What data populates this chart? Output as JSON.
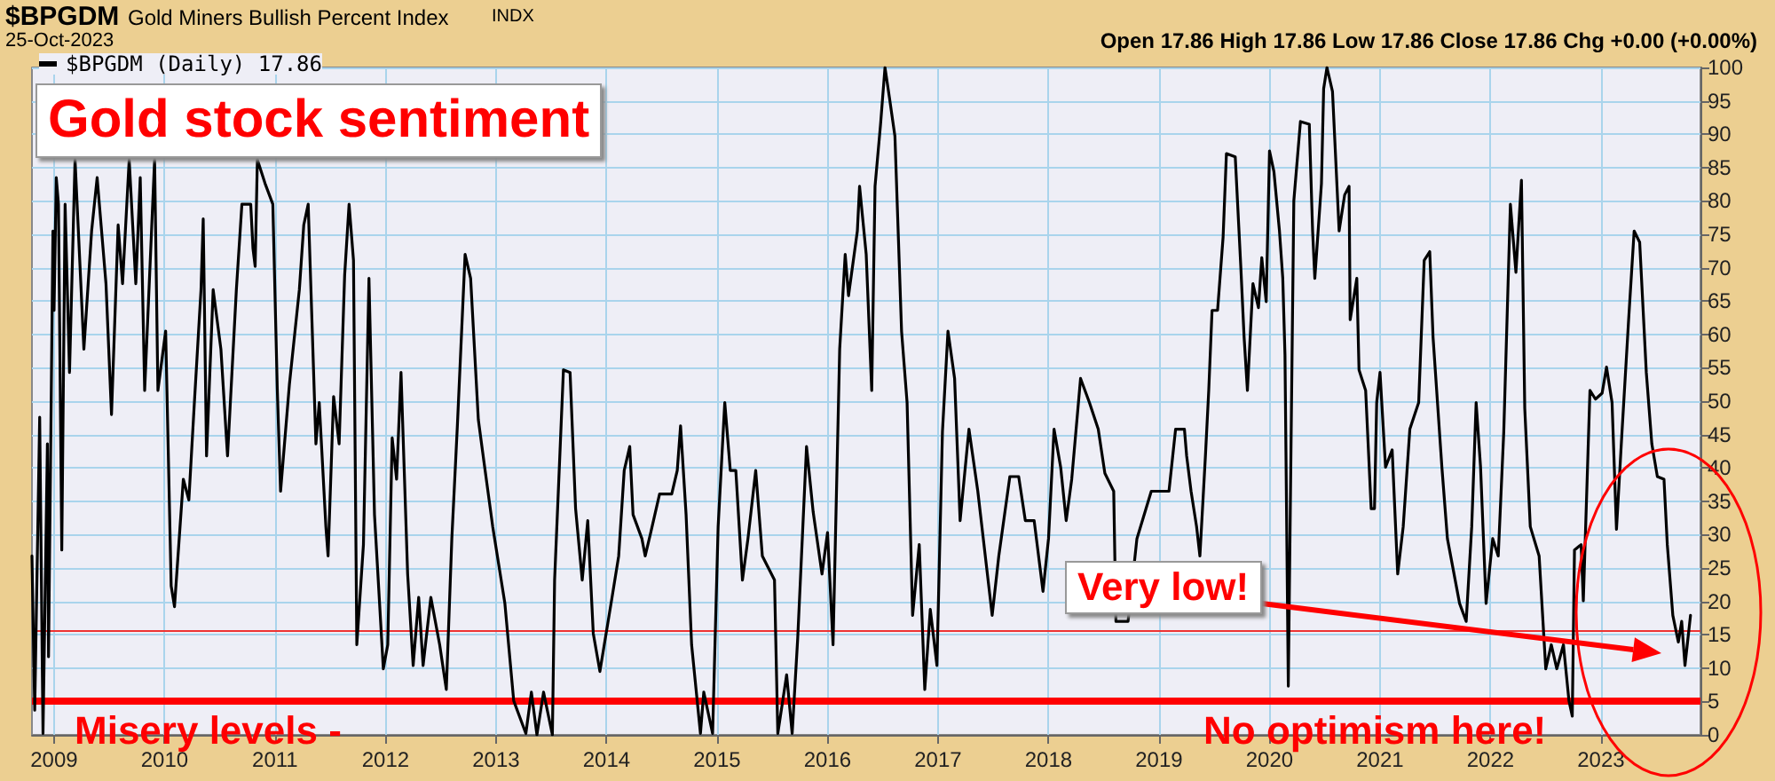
{
  "chart_data": {
    "type": "line",
    "title": "Gold stock sentiment",
    "annotations": [
      "$BPGDM",
      "Gold Miners Bullish Percent Index",
      "INDX",
      "25-Oct-2023",
      "Open 17.86 High 17.86 Low 17.86 Close 17.86 Chg +0.00 (+0.00%)",
      "Very low!",
      "Misery levels -",
      "No optimism here!"
    ],
    "xlim": [
      2008.8,
      2023.9
    ],
    "xticks": [
      2009,
      2010,
      2011,
      2012,
      2013,
      2014,
      2015,
      2016,
      2017,
      2018,
      2019,
      2020,
      2021,
      2022,
      2023
    ],
    "ylim": [
      0,
      100
    ],
    "yticks": [
      0,
      5,
      10,
      15,
      20,
      25,
      30,
      35,
      40,
      45,
      50,
      55,
      60,
      65,
      70,
      75,
      80,
      85,
      90,
      95,
      100
    ],
    "grid": true,
    "legend": "top left",
    "marker": "none",
    "ref_lines": [
      {
        "axis": "y",
        "value": 15.5,
        "color": "#ee3333"
      },
      {
        "axis": "y",
        "value": 5,
        "color": "#ff0000"
      }
    ],
    "series": [
      {
        "name": "$BPGDM (Daily) 17.86",
        "color": "#000000",
        "x": [
          2008.8,
          2008.825,
          2008.87,
          2008.9,
          2008.94,
          2008.95,
          2008.99,
          2009.0,
          2009.02,
          2009.04,
          2009.07,
          2009.1,
          2009.14,
          2009.19,
          2009.27,
          2009.34,
          2009.39,
          2009.47,
          2009.52,
          2009.58,
          2009.62,
          2009.68,
          2009.74,
          2009.78,
          2009.82,
          2009.91,
          2009.94,
          2010.01,
          2010.06,
          2010.09,
          2010.17,
          2010.22,
          2010.27,
          2010.33,
          2010.35,
          2010.38,
          2010.44,
          2010.51,
          2010.57,
          2010.65,
          2010.7,
          2010.78,
          2010.8,
          2010.82,
          2010.84,
          2010.91,
          2010.98,
          2011.02,
          2011.05,
          2011.13,
          2011.22,
          2011.26,
          2011.3,
          2011.37,
          2011.4,
          2011.46,
          2011.48,
          2011.53,
          2011.58,
          2011.63,
          2011.67,
          2011.71,
          2011.74,
          2011.8,
          2011.85,
          2011.9,
          2011.98,
          2012.02,
          2012.06,
          2012.1,
          2012.14,
          2012.2,
          2012.25,
          2012.3,
          2012.34,
          2012.41,
          2012.49,
          2012.55,
          2012.6,
          2012.65,
          2012.72,
          2012.77,
          2012.84,
          2012.89,
          2012.97,
          2013.08,
          2013.16,
          2013.27,
          2013.32,
          2013.37,
          2013.43,
          2013.51,
          2013.53,
          2013.61,
          2013.67,
          2013.72,
          2013.78,
          2013.83,
          2013.88,
          2013.94,
          2014.05,
          2014.11,
          2014.16,
          2014.21,
          2014.24,
          2014.32,
          2014.35,
          2014.4,
          2014.48,
          2014.59,
          2014.64,
          2014.67,
          2014.72,
          2014.77,
          2014.85,
          2014.88,
          2014.96,
          2015.01,
          2015.07,
          2015.12,
          2015.17,
          2015.23,
          2015.28,
          2015.35,
          2015.41,
          2015.52,
          2015.55,
          2015.63,
          2015.68,
          2015.73,
          2015.81,
          2015.87,
          2015.95,
          2016.0,
          2016.05,
          2016.11,
          2016.16,
          2016.19,
          2016.27,
          2016.29,
          2016.35,
          2016.4,
          2016.43,
          2016.48,
          2016.52,
          2016.56,
          2016.61,
          2016.67,
          2016.72,
          2016.77,
          2016.83,
          2016.88,
          2016.93,
          2016.99,
          2017.04,
          2017.09,
          2017.15,
          2017.2,
          2017.28,
          2017.36,
          2017.49,
          2017.55,
          2017.65,
          2017.73,
          2017.79,
          2017.87,
          2017.95,
          2018.0,
          2018.05,
          2018.11,
          2018.16,
          2018.21,
          2018.29,
          2018.37,
          2018.45,
          2018.51,
          2018.59,
          2018.61,
          2018.72,
          2018.8,
          2018.93,
          2019.09,
          2019.15,
          2019.23,
          2019.25,
          2019.29,
          2019.34,
          2019.37,
          2019.42,
          2019.45,
          2019.48,
          2019.53,
          2019.58,
          2019.61,
          2019.69,
          2019.74,
          2019.77,
          2019.8,
          2019.85,
          2019.9,
          2019.93,
          2019.97,
          2020.0,
          2020.04,
          2020.09,
          2020.12,
          2020.14,
          2020.17,
          2020.22,
          2020.28,
          2020.36,
          2020.39,
          2020.41,
          2020.47,
          2020.49,
          2020.52,
          2020.57,
          2020.63,
          2020.68,
          2020.72,
          2020.73,
          2020.79,
          2020.81,
          2020.87,
          2020.92,
          2020.95,
          2020.97,
          2021.0,
          2021.05,
          2021.11,
          2021.16,
          2021.21,
          2021.27,
          2021.35,
          2021.4,
          2021.45,
          2021.48,
          2021.56,
          2021.61,
          2021.72,
          2021.78,
          2021.83,
          2021.87,
          2021.91,
          2021.96,
          2022.02,
          2022.07,
          2022.12,
          2022.18,
          2022.23,
          2022.28,
          2022.31,
          2022.36,
          2022.44,
          2022.5,
          2022.55,
          2022.6,
          2022.66,
          2022.71,
          2022.74,
          2022.76,
          2022.82,
          2022.84,
          2022.9,
          2022.95,
          2023.01,
          2023.05,
          2023.1,
          2023.14,
          2023.19,
          2023.25,
          2023.3,
          2023.35,
          2023.41,
          2023.46,
          2023.51,
          2023.57,
          2023.6,
          2023.65,
          2023.7,
          2023.73,
          2023.76,
          2023.81
        ],
        "values": [
          26.8,
          3.7,
          47.6,
          0.2,
          43.6,
          11.7,
          75.5,
          63.6,
          83.5,
          79.5,
          27.7,
          79.5,
          54.3,
          86.2,
          57.8,
          75.5,
          83.5,
          67.6,
          48.0,
          76.4,
          67.6,
          86.2,
          67.6,
          83.5,
          51.6,
          86.2,
          51.6,
          60.5,
          22.3,
          19.2,
          38.3,
          35.2,
          49.8,
          66.7,
          77.3,
          41.8,
          66.7,
          57.8,
          41.8,
          66.7,
          79.5,
          79.5,
          72.9,
          70.2,
          86.2,
          82.6,
          79.5,
          52.0,
          36.5,
          52.5,
          66.7,
          76.4,
          79.5,
          43.6,
          49.8,
          31.2,
          26.8,
          50.7,
          43.6,
          68.9,
          79.5,
          71.1,
          13.5,
          28.5,
          68.4,
          33.0,
          9.9,
          13.5,
          44.5,
          38.3,
          54.3,
          24.1,
          10.4,
          20.6,
          10.4,
          20.6,
          13.5,
          6.8,
          29.4,
          46.3,
          72.0,
          68.4,
          47.2,
          41.0,
          31.2,
          19.7,
          5.1,
          0.2,
          6.4,
          0,
          6.4,
          0,
          23.2,
          54.7,
          54.3,
          33.9,
          23.2,
          32.1,
          15.2,
          9.5,
          20.6,
          26.8,
          39.6,
          43.2,
          33.0,
          29.4,
          26.8,
          30.3,
          36.1,
          36.1,
          39.6,
          46.3,
          33.0,
          13.5,
          0.2,
          6.4,
          0.2,
          31.2,
          49.8,
          39.6,
          39.6,
          23.2,
          29.4,
          39.6,
          26.8,
          23.2,
          0.2,
          9.0,
          0.2,
          14.4,
          43.2,
          33.4,
          24.1,
          30.3,
          13.5,
          57.8,
          72.0,
          65.8,
          75.5,
          82.2,
          72.0,
          51.6,
          82.2,
          91.5,
          100,
          95.5,
          89.7,
          60.5,
          49.8,
          17.9,
          28.5,
          6.8,
          18.8,
          10.4,
          45.4,
          60.5,
          53.4,
          32.1,
          45.8,
          36.5,
          17.9,
          26.8,
          38.7,
          38.7,
          32.1,
          32.1,
          21.5,
          29.4,
          45.8,
          40.1,
          32.1,
          38.3,
          53.4,
          49.8,
          45.8,
          39.2,
          36.5,
          17.0,
          17.0,
          29.4,
          36.5,
          36.5,
          45.8,
          45.8,
          41.8,
          36.5,
          31.2,
          26.8,
          41.8,
          51.6,
          63.6,
          63.6,
          74.6,
          87.1,
          86.6,
          70.2,
          59.6,
          51.6,
          67.6,
          64.0,
          71.5,
          64.9,
          87.5,
          84.4,
          75.5,
          68.4,
          56.9,
          7.3,
          80.0,
          91.9,
          91.5,
          75.5,
          68.4,
          82.6,
          96.8,
          100,
          96.4,
          75.5,
          80.9,
          82.2,
          62.2,
          68.4,
          54.7,
          51.6,
          33.9,
          33.9,
          49.8,
          54.3,
          40.1,
          42.7,
          24.1,
          31.2,
          45.8,
          49.8,
          71.1,
          72.4,
          59.6,
          40.1,
          29.4,
          19.7,
          17.0,
          31.2,
          49.8,
          40.1,
          19.7,
          29.4,
          26.8,
          45.4,
          79.5,
          69.3,
          83.1,
          48.9,
          31.2,
          26.8,
          9.9,
          13.5,
          9.9,
          13.5,
          5.1,
          2.8,
          27.7,
          28.5,
          20.1,
          51.6,
          50.3,
          51.2,
          55.1,
          49.8,
          30.8,
          45.4,
          62.2,
          75.5,
          73.8,
          54.3,
          43.6,
          38.7,
          38.3,
          28.5,
          17.9,
          13.9,
          17.0,
          10.4,
          17.9
        ]
      }
    ]
  }
}
